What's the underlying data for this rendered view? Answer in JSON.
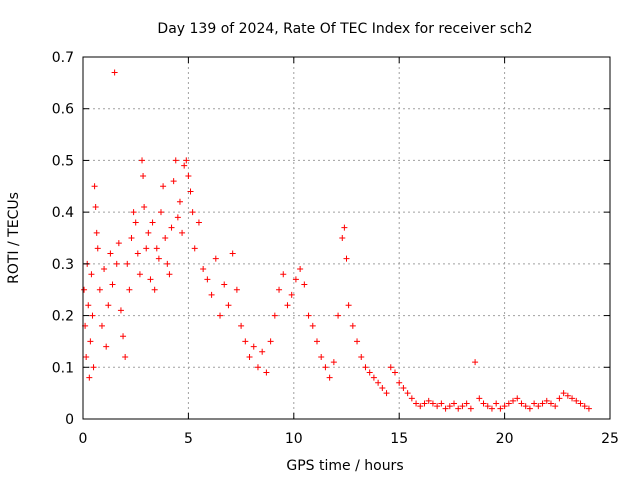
{
  "chart_data": {
    "type": "scatter",
    "title": "Day 139 of 2024, Rate Of TEC Index for receiver sch2",
    "xlabel": "GPS time / hours",
    "ylabel": "ROTI / TECUs",
    "xlim": [
      0,
      25
    ],
    "ylim": [
      0,
      0.7
    ],
    "xticks": [
      0,
      5,
      10,
      15,
      20,
      25
    ],
    "yticks": [
      0,
      0.1,
      0.2,
      0.3,
      0.4,
      0.5,
      0.6,
      0.7
    ],
    "xtick_labels": [
      "0",
      "5",
      "10",
      "15",
      "20",
      "25"
    ],
    "ytick_labels": [
      "0",
      "0.1",
      "0.2",
      "0.3",
      "0.4",
      "0.5",
      "0.6",
      "0.7"
    ],
    "grid": true,
    "marker": "+",
    "color": "#ff0000",
    "series": [
      {
        "name": "sch2",
        "points": [
          [
            0.05,
            0.25
          ],
          [
            0.1,
            0.18
          ],
          [
            0.15,
            0.12
          ],
          [
            0.2,
            0.3
          ],
          [
            0.25,
            0.22
          ],
          [
            0.3,
            0.08
          ],
          [
            0.35,
            0.15
          ],
          [
            0.4,
            0.28
          ],
          [
            0.45,
            0.2
          ],
          [
            0.5,
            0.1
          ],
          [
            0.55,
            0.45
          ],
          [
            0.6,
            0.41
          ],
          [
            0.65,
            0.36
          ],
          [
            0.7,
            0.33
          ],
          [
            0.8,
            0.25
          ],
          [
            0.9,
            0.18
          ],
          [
            1.0,
            0.29
          ],
          [
            1.1,
            0.14
          ],
          [
            1.2,
            0.22
          ],
          [
            1.3,
            0.32
          ],
          [
            1.4,
            0.26
          ],
          [
            1.5,
            0.67
          ],
          [
            1.6,
            0.3
          ],
          [
            1.7,
            0.34
          ],
          [
            1.8,
            0.21
          ],
          [
            1.9,
            0.16
          ],
          [
            2.0,
            0.12
          ],
          [
            2.1,
            0.3
          ],
          [
            2.2,
            0.25
          ],
          [
            2.3,
            0.35
          ],
          [
            2.4,
            0.4
          ],
          [
            2.5,
            0.38
          ],
          [
            2.6,
            0.32
          ],
          [
            2.7,
            0.28
          ],
          [
            2.8,
            0.5
          ],
          [
            2.85,
            0.47
          ],
          [
            2.9,
            0.41
          ],
          [
            3.0,
            0.33
          ],
          [
            3.1,
            0.36
          ],
          [
            3.2,
            0.27
          ],
          [
            3.3,
            0.38
          ],
          [
            3.4,
            0.25
          ],
          [
            3.5,
            0.33
          ],
          [
            3.6,
            0.31
          ],
          [
            3.7,
            0.4
          ],
          [
            3.8,
            0.45
          ],
          [
            3.9,
            0.35
          ],
          [
            4.0,
            0.3
          ],
          [
            4.1,
            0.28
          ],
          [
            4.2,
            0.37
          ],
          [
            4.3,
            0.46
          ],
          [
            4.4,
            0.5
          ],
          [
            4.5,
            0.39
          ],
          [
            4.6,
            0.42
          ],
          [
            4.7,
            0.36
          ],
          [
            4.8,
            0.49
          ],
          [
            4.9,
            0.5
          ],
          [
            5.0,
            0.47
          ],
          [
            5.1,
            0.44
          ],
          [
            5.2,
            0.4
          ],
          [
            5.3,
            0.33
          ],
          [
            5.5,
            0.38
          ],
          [
            5.7,
            0.29
          ],
          [
            5.9,
            0.27
          ],
          [
            6.1,
            0.24
          ],
          [
            6.3,
            0.31
          ],
          [
            6.5,
            0.2
          ],
          [
            6.7,
            0.26
          ],
          [
            6.9,
            0.22
          ],
          [
            7.1,
            0.32
          ],
          [
            7.3,
            0.25
          ],
          [
            7.5,
            0.18
          ],
          [
            7.7,
            0.15
          ],
          [
            7.9,
            0.12
          ],
          [
            8.1,
            0.14
          ],
          [
            8.3,
            0.1
          ],
          [
            8.5,
            0.13
          ],
          [
            8.7,
            0.09
          ],
          [
            8.9,
            0.15
          ],
          [
            9.1,
            0.2
          ],
          [
            9.3,
            0.25
          ],
          [
            9.5,
            0.28
          ],
          [
            9.7,
            0.22
          ],
          [
            9.9,
            0.24
          ],
          [
            10.1,
            0.27
          ],
          [
            10.3,
            0.29
          ],
          [
            10.5,
            0.26
          ],
          [
            10.7,
            0.2
          ],
          [
            10.9,
            0.18
          ],
          [
            11.1,
            0.15
          ],
          [
            11.3,
            0.12
          ],
          [
            11.5,
            0.1
          ],
          [
            11.7,
            0.08
          ],
          [
            11.9,
            0.11
          ],
          [
            12.1,
            0.2
          ],
          [
            12.3,
            0.35
          ],
          [
            12.4,
            0.37
          ],
          [
            12.5,
            0.31
          ],
          [
            12.6,
            0.22
          ],
          [
            12.8,
            0.18
          ],
          [
            13.0,
            0.15
          ],
          [
            13.2,
            0.12
          ],
          [
            13.4,
            0.1
          ],
          [
            13.6,
            0.09
          ],
          [
            13.8,
            0.08
          ],
          [
            14.0,
            0.07
          ],
          [
            14.2,
            0.06
          ],
          [
            14.4,
            0.05
          ],
          [
            14.6,
            0.1
          ],
          [
            14.8,
            0.09
          ],
          [
            15.0,
            0.07
          ],
          [
            15.2,
            0.06
          ],
          [
            15.4,
            0.05
          ],
          [
            15.6,
            0.04
          ],
          [
            15.8,
            0.03
          ],
          [
            16.0,
            0.025
          ],
          [
            16.2,
            0.03
          ],
          [
            16.4,
            0.035
          ],
          [
            16.6,
            0.03
          ],
          [
            16.8,
            0.025
          ],
          [
            17.0,
            0.03
          ],
          [
            17.2,
            0.02
          ],
          [
            17.4,
            0.025
          ],
          [
            17.6,
            0.03
          ],
          [
            17.8,
            0.02
          ],
          [
            18.0,
            0.025
          ],
          [
            18.2,
            0.03
          ],
          [
            18.4,
            0.02
          ],
          [
            18.6,
            0.11
          ],
          [
            18.8,
            0.04
          ],
          [
            19.0,
            0.03
          ],
          [
            19.2,
            0.025
          ],
          [
            19.4,
            0.02
          ],
          [
            19.6,
            0.03
          ],
          [
            19.8,
            0.02
          ],
          [
            20.0,
            0.025
          ],
          [
            20.2,
            0.03
          ],
          [
            20.4,
            0.035
          ],
          [
            20.6,
            0.04
          ],
          [
            20.8,
            0.03
          ],
          [
            21.0,
            0.025
          ],
          [
            21.2,
            0.02
          ],
          [
            21.4,
            0.03
          ],
          [
            21.6,
            0.025
          ],
          [
            21.8,
            0.03
          ],
          [
            22.0,
            0.035
          ],
          [
            22.2,
            0.03
          ],
          [
            22.4,
            0.025
          ],
          [
            22.6,
            0.04
          ],
          [
            22.8,
            0.05
          ],
          [
            23.0,
            0.045
          ],
          [
            23.2,
            0.04
          ],
          [
            23.4,
            0.035
          ],
          [
            23.6,
            0.03
          ],
          [
            23.8,
            0.025
          ],
          [
            24.0,
            0.02
          ]
        ]
      }
    ]
  }
}
